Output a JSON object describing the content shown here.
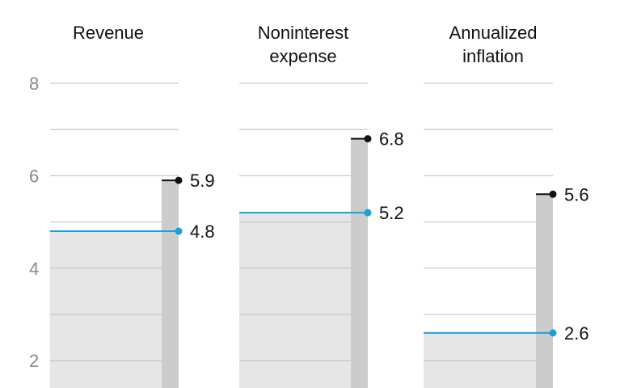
{
  "colors": {
    "background": "#ffffff",
    "grid": "#bdbdbd",
    "area": "#e6e6e6",
    "bar": "#cccccc",
    "line_blue": "#1a9fdc",
    "marker_black": "#111111",
    "tick_text": "#8a8a8a",
    "label_text": "#111111"
  },
  "chart_data": {
    "type": "bar",
    "ylim": [
      1.4,
      8
    ],
    "yticks": [
      2,
      4,
      6,
      8
    ],
    "ytick_labels": [
      "2",
      "4",
      "6",
      "8"
    ],
    "grid": true,
    "gridline_values": [
      2,
      3,
      4,
      5,
      6,
      7,
      8
    ],
    "panels": [
      {
        "title_lines": [
          "Revenue"
        ],
        "blue_value": 4.8,
        "blue_label": "4.8",
        "black_value": 5.9,
        "black_label": "5.9"
      },
      {
        "title_lines": [
          "Noninterest",
          "expense"
        ],
        "blue_value": 5.2,
        "blue_label": "5.2",
        "black_value": 6.8,
        "black_label": "6.8"
      },
      {
        "title_lines": [
          "Annualized",
          "inflation"
        ],
        "blue_value": 2.6,
        "blue_label": "2.6",
        "black_value": 5.6,
        "black_label": "5.6"
      }
    ]
  }
}
